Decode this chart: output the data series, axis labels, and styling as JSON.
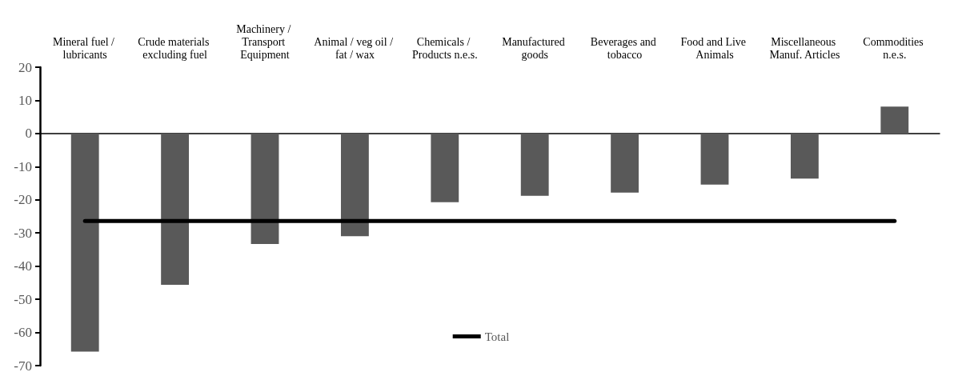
{
  "chart_data": {
    "type": "bar",
    "categories": [
      "Mineral fuel / lubricants",
      "Crude materials excluding fuel",
      "Machinery / Transport Equipment",
      "Animal / veg oil / fat / wax",
      "Chemicals / Products n.e.s.",
      "Manufactured goods",
      "Beverages and tobacco",
      "Food and Live Animals",
      "Miscellaneous Manuf. Articles",
      "Commodities n.e.s."
    ],
    "series": [
      {
        "color": "#595959",
        "values": [
          -65.8,
          -45.6,
          -33.3,
          -31.0,
          -20.7,
          -18.8,
          -17.8,
          -15.4,
          -13.6,
          8.1
        ]
      },
      {
        "type": "line",
        "name": "Total",
        "color": "#000000",
        "values": [
          -26.4,
          -26.4,
          -26.4,
          -26.4,
          -26.4,
          -26.4,
          -26.4,
          -26.4,
          -26.4,
          -26.4
        ]
      }
    ],
    "ylim": [
      -70,
      20
    ],
    "yticks": [
      20,
      10,
      0,
      -10,
      -20,
      -30,
      -40,
      -50,
      -60,
      -70
    ],
    "grid": false,
    "legend": "bottom",
    "marker": "none",
    "line_style": "solid"
  }
}
